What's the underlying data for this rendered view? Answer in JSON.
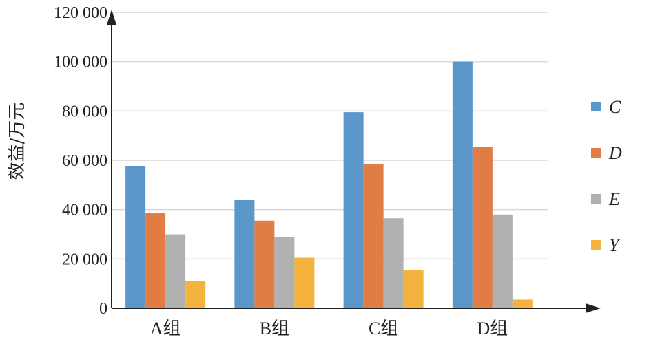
{
  "chart_data": {
    "type": "bar",
    "ylabel": "效益/万元",
    "xlabel": "",
    "ylim": [
      0,
      120000
    ],
    "yticks": [
      0,
      20000,
      40000,
      60000,
      80000,
      100000,
      120000
    ],
    "ytick_labels": [
      "0",
      "20 000",
      "40 000",
      "60 000",
      "80 000",
      "100 000",
      "120 000"
    ],
    "categories": [
      "A组",
      "B组",
      "C组",
      "D组"
    ],
    "series": [
      {
        "name": "C",
        "color": "#5b97c9",
        "values": [
          57500,
          44000,
          79500,
          100000
        ]
      },
      {
        "name": "D",
        "color": "#e27c45",
        "values": [
          38500,
          35500,
          58500,
          65500
        ]
      },
      {
        "name": "E",
        "color": "#b1b1b1",
        "values": [
          30000,
          29000,
          36500,
          38000
        ]
      },
      {
        "name": "Y",
        "color": "#f3b33d",
        "values": [
          11000,
          20500,
          15500,
          3500
        ]
      }
    ],
    "grid": true,
    "legend_position": "right"
  }
}
